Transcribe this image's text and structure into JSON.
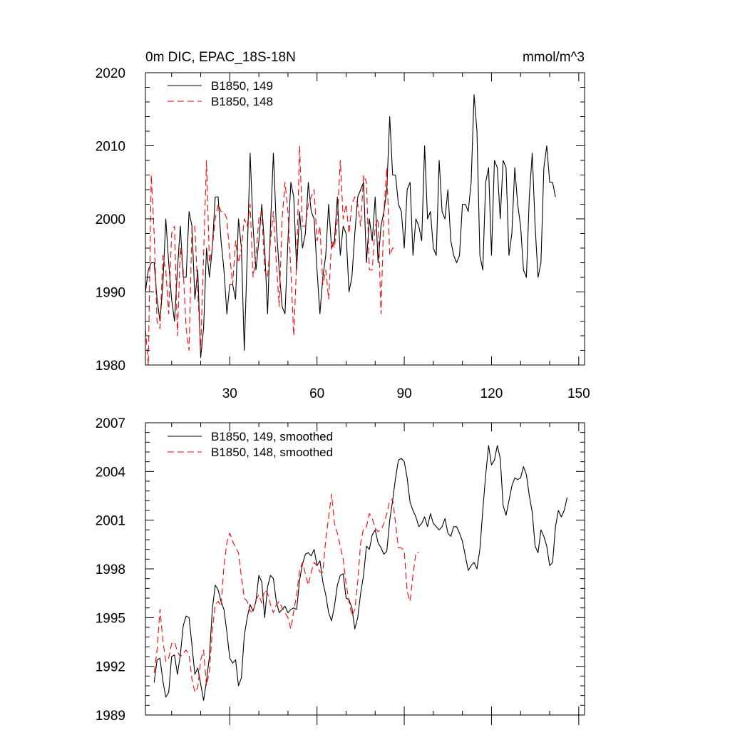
{
  "chart_data": [
    {
      "type": "line",
      "title": "0m DIC, EPAC_18S-18N",
      "units": "mmol/m^3",
      "xlim": [
        1,
        152
      ],
      "ylim": [
        1980,
        2020
      ],
      "xticks": [
        30,
        60,
        90,
        120,
        150
      ],
      "xtick_labels": [
        "30",
        "60",
        "90",
        "120",
        "150"
      ],
      "yticks": [
        1980,
        1990,
        2000,
        2010,
        2020
      ],
      "ytick_labels": [
        "1980",
        "1990",
        "2000",
        "2010",
        "2020"
      ],
      "grid": false,
      "legend_position": "top-left",
      "series": [
        {
          "name": "B1850, 149",
          "color": "#000000",
          "dash": "solid",
          "x_start": 1,
          "values": [
            1990,
            1993,
            1994,
            1994,
            1989,
            1986,
            1991,
            2000,
            1994,
            1989,
            1986,
            1993,
            1999,
            1992,
            1992,
            2001,
            1999,
            1989,
            1993,
            1981,
            1985,
            1996,
            1992,
            1996,
            2003,
            2003,
            1997,
            1993,
            1987,
            1991,
            1991,
            1989,
            2000,
            1996,
            1982,
            1995,
            2009,
            1999,
            1993,
            1997,
            2002,
            1996,
            1987,
            1999,
            2009,
            1999,
            1993,
            1988,
            1987,
            1997,
            2005,
            2003,
            1993,
            2001,
            1996,
            1998,
            2005,
            2001,
            2000,
            1993,
            1987,
            1992,
            1995,
            2002,
            1996,
            1997,
            2003,
            1995,
            1999,
            1998,
            1990,
            1992,
            1998,
            2003,
            2004,
            2005,
            1994,
            2000,
            1997,
            2003,
            1994,
            1999,
            2001,
            2004,
            2014,
            2006,
            2006,
            2002,
            2001,
            1996,
            2004,
            2005,
            1995,
            2000,
            1999,
            1997,
            2010,
            2000,
            2001,
            1996,
            1995,
            2008,
            2001,
            2000,
            2004,
            1997,
            1995,
            1994,
            1995,
            2002,
            2002,
            2001,
            2005,
            2017,
            2012,
            1995,
            1993,
            2005,
            2007,
            1995,
            2008,
            2007,
            2000,
            2008,
            2007,
            1995,
            1998,
            2007,
            2002,
            1999,
            1993,
            1992,
            2003,
            2009,
            1999,
            1992,
            1994,
            2007,
            2010,
            2005,
            2005,
            2003
          ]
        },
        {
          "name": "B1850, 148",
          "color": "#ff0000",
          "dash": "dashed",
          "x_start": 1,
          "values": [
            1985,
            1980,
            2006,
            1998,
            1986,
            1985,
            1995,
            1993,
            1987,
            1998,
            1999,
            1984,
            1996,
            1993,
            1985,
            1982,
            1999,
            1999,
            1990,
            1982,
            1995,
            2008,
            1994,
            1996,
            2000,
            2002,
            2001,
            2001,
            2000,
            1995,
            1991,
            1997,
            1994,
            1996,
            2000,
            1999,
            2002,
            1992,
            1995,
            2000,
            2001,
            1993,
            1992,
            1997,
            2001,
            1994,
            1988,
            2000,
            2005,
            2001,
            1993,
            1984,
            1994,
            2010,
            1999,
            1999,
            2002,
            2003,
            2004,
            1997,
            1999,
            1991,
            1993,
            1989,
            1997,
            1996,
            2000,
            2008,
            2000,
            2002,
            1998,
            2002,
            2003,
            2002,
            1999,
            2006,
            2005,
            1993,
            1993,
            1999,
            2000,
            1987,
            2001,
            2007,
            1995,
            1996,
            1996
          ]
        }
      ]
    },
    {
      "type": "line",
      "title": "",
      "xlim": [
        1,
        152
      ],
      "ylim": [
        1989,
        2007
      ],
      "xticks": [
        30,
        60,
        90,
        120,
        150
      ],
      "xtick_labels": [],
      "yticks": [
        1989,
        1992,
        1995,
        1998,
        2001,
        2004,
        2007
      ],
      "ytick_labels": [
        "1989",
        "1992",
        "1995",
        "1998",
        "2001",
        "2004",
        "2007"
      ],
      "grid": false,
      "legend_position": "top-left",
      "series": [
        {
          "name": "B1850, 149, smoothed",
          "color": "#000000",
          "dash": "solid",
          "x_start": 4,
          "values": [
            1991.0,
            1992.4,
            1992.5,
            1991.1,
            1990.1,
            1990.4,
            1992.6,
            1992.7,
            1991.5,
            1992.7,
            1994.5,
            1995.1,
            1995.0,
            1993.3,
            1991.5,
            1991.9,
            1990.9,
            1989.9,
            1991.1,
            1992.6,
            1995.5,
            1997.0,
            1996.7,
            1996.0,
            1995.5,
            1994.1,
            1992.5,
            1992.2,
            1992.4,
            1990.8,
            1991.3,
            1993.9,
            1995.0,
            1995.8,
            1995.4,
            1996.0,
            1997.6,
            1997.2,
            1995.0,
            1996.9,
            1997.6,
            1997.4,
            1996.0,
            1995.3,
            1995.5,
            1995.7,
            1995.3,
            1995.5,
            1995.6,
            1995.5,
            1997.3,
            1998.3,
            1998.9,
            1999.0,
            1998.8,
            1999.2,
            1998.2,
            1998.5,
            1997.2,
            1996.4,
            1995.3,
            1994.8,
            1995.7,
            1997.0,
            1997.6,
            1997.7,
            1996.2,
            1996.1,
            1995.6,
            1994.3,
            1995.0,
            1996.5,
            1997.6,
            1999.4,
            1999.2,
            2000.1,
            2000.4,
            1999.6,
            1999.3,
            1998.9,
            1999.1,
            2001.0,
            2002.2,
            2003.6,
            2004.7,
            2004.8,
            2004.6,
            2003.6,
            2002.1,
            2001.6,
            2001.2,
            2000.6,
            2000.8,
            2001.2,
            2000.6,
            2001.4,
            2000.8,
            2000.6,
            2000.4,
            2000.6,
            2001.1,
            2000.2,
            2000.0,
            2000.6,
            2000.6,
            2000.2,
            1999.7,
            1998.8,
            1997.9,
            1998.2,
            1998.4,
            1998.0,
            1999.2,
            2001.6,
            2003.8,
            2005.6,
            2004.4,
            2004.7,
            2005.6,
            2004.8,
            2001.9,
            2001.3,
            2002.2,
            2003.1,
            2003.6,
            2003.5,
            2003.6,
            2004.3,
            2003.8,
            2002.5,
            2001.5,
            1999.4,
            1999.0,
            2000.4,
            2000.0,
            1999.4,
            1998.2,
            1998.4,
            2000.6,
            2001.6,
            2001.2,
            2001.6,
            2002.4
          ]
        },
        {
          "name": "B1850, 148, smoothed",
          "color": "#ff0000",
          "dash": "dashed",
          "x_start": 4,
          "values": [
            1991.6,
            1993.0,
            1995.5,
            1993.6,
            1992.3,
            1992.5,
            1993.4,
            1993.5,
            1992.9,
            1992.6,
            1992.8,
            1993.0,
            1992.7,
            1991.2,
            1990.4,
            1990.7,
            1992.4,
            1993.0,
            1990.8,
            1991.7,
            1994.2,
            1995.8,
            1996.0,
            1995.7,
            1998.2,
            1999.6,
            2000.2,
            1999.7,
            1999.3,
            1999.0,
            1997.5,
            1996.2,
            1996.0,
            1995.4,
            1995.3,
            1996.1,
            1996.4,
            1995.9,
            1996.7,
            1996.5,
            1995.8,
            1995.3,
            1995.8,
            1996.0,
            1995.6,
            1995.3,
            1995.0,
            1994.3,
            1995.4,
            1996.4,
            1997.9,
            1998.4,
            1997.7,
            1997.0,
            1997.8,
            1998.4,
            1998.2,
            1997.8,
            1997.8,
            1999.8,
            2001.2,
            2002.6,
            2000.8,
            2000.2,
            1999.4,
            1998.6,
            1997.1,
            1996.0,
            1995.1,
            1995.5,
            1997.2,
            1999.6,
            2000.5,
            2000.6,
            2001.4,
            2001.1,
            2000.5,
            2000.3,
            2000.4,
            2000.8,
            2001.4,
            2002.2,
            2002.3,
            2000.8,
            1999.3,
            1999.3,
            1999.1,
            1996.6,
            1996.0,
            1997.6,
            1999.0,
            1999.0
          ]
        }
      ]
    }
  ]
}
